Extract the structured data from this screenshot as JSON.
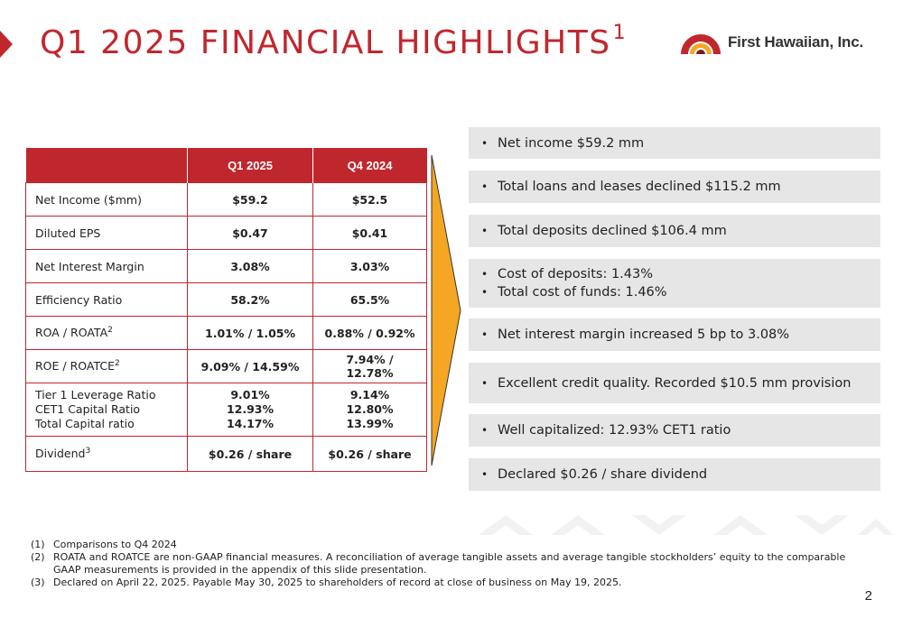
{
  "title": {
    "text": "Q1 2025 FINANCIAL HIGHLIGHTS",
    "sup": "1"
  },
  "logo": {
    "text": "First Hawaiian, Inc."
  },
  "colors": {
    "brand_red": "#c0272d",
    "arrow_fill": "#f5a623",
    "panel_gray": "#e6e6e6"
  },
  "table": {
    "headers": [
      "",
      "Q1 2025",
      "Q4 2024"
    ],
    "rows": [
      {
        "label": "Net Income ($mm)",
        "q1": "$59.2",
        "q4": "$52.5"
      },
      {
        "label": "Diluted EPS",
        "q1": "$0.47",
        "q4": "$0.41"
      },
      {
        "label": "Net Interest Margin",
        "q1": "3.08%",
        "q4": "3.03%"
      },
      {
        "label": "Efficiency Ratio",
        "q1": "58.2%",
        "q4": "65.5%"
      },
      {
        "label": "ROA / ROATA",
        "sup": "2",
        "q1": "1.01% / 1.05%",
        "q4": "0.88% / 0.92%"
      },
      {
        "label": "ROE / ROATCE",
        "sup": "2",
        "q1": "9.09% / 14.59%",
        "q4": "7.94% / 12.78%"
      },
      {
        "labels": [
          "Tier 1 Leverage Ratio",
          "CET1 Capital Ratio",
          "Total Capital ratio"
        ],
        "q1": [
          "9.01%",
          "12.93%",
          "14.17%"
        ],
        "q4": [
          "9.14%",
          "12.80%",
          "13.99%"
        ]
      },
      {
        "label": "Dividend",
        "sup": "3",
        "q1": "$0.26 / share",
        "q4": "$0.26 / share"
      }
    ]
  },
  "bullets": [
    [
      "Net income $59.2 mm"
    ],
    [
      "Total loans and leases declined $115.2 mm"
    ],
    [
      "Total deposits declined $106.4 mm"
    ],
    [
      "Cost of deposits: 1.43%",
      "Total cost of funds: 1.46%"
    ],
    [
      "Net interest margin increased 5 bp to 3.08%"
    ],
    [
      "Excellent credit quality.  Recorded $10.5 mm provision"
    ],
    [
      "Well capitalized: 12.93% CET1 ratio"
    ],
    [
      "Declared $0.26 / share dividend"
    ]
  ],
  "footnotes": [
    {
      "num": "(1)",
      "text": "Comparisons to Q4 2024"
    },
    {
      "num": "(2)",
      "text": "ROATA and ROATCE are non-GAAP financial measures.  A reconciliation of average tangible assets and average tangible stockholders’ equity to the comparable GAAP measurements is provided in the appendix of this slide presentation."
    },
    {
      "num": "(3)",
      "text": "Declared on April 22, 2025.  Payable May 30, 2025 to shareholders of record at close of business on May 19, 2025."
    }
  ],
  "page_number": "2"
}
